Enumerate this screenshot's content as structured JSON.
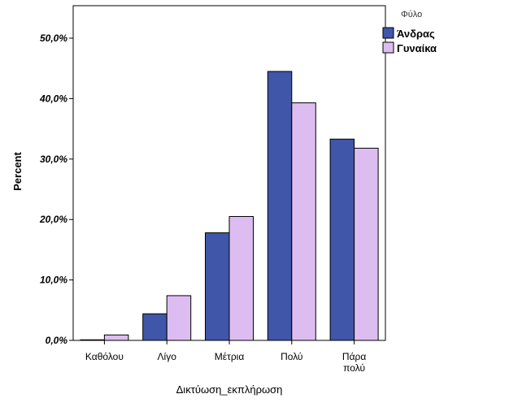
{
  "chart_data": {
    "type": "bar",
    "categories": [
      [
        "Καθόλου"
      ],
      [
        "Λίγο"
      ],
      [
        "Μέτρια"
      ],
      [
        "Πολύ"
      ],
      [
        "Πάρα",
        "πολύ"
      ]
    ],
    "series": [
      {
        "name": "Άνδρας",
        "color": "#3F56A9",
        "values": [
          0.1,
          4.4,
          17.8,
          44.5,
          33.3
        ]
      },
      {
        "name": "Γυναίκα",
        "color": "#DDBDF1",
        "values": [
          0.9,
          7.4,
          20.5,
          39.3,
          31.8
        ]
      }
    ],
    "xlabel": "Δικτύωση_εκπλήρωση",
    "ylabel": "Percent",
    "ylim": [
      0,
      50
    ],
    "yticks": [
      0,
      10,
      20,
      30,
      40,
      50
    ],
    "ytick_labels": [
      "0,0%",
      "10,0%",
      "20,0%",
      "30,0%",
      "40,0%",
      "50,0%"
    ],
    "legend": {
      "title": "Φύλο",
      "placement": "top-right"
    },
    "grid": false
  }
}
